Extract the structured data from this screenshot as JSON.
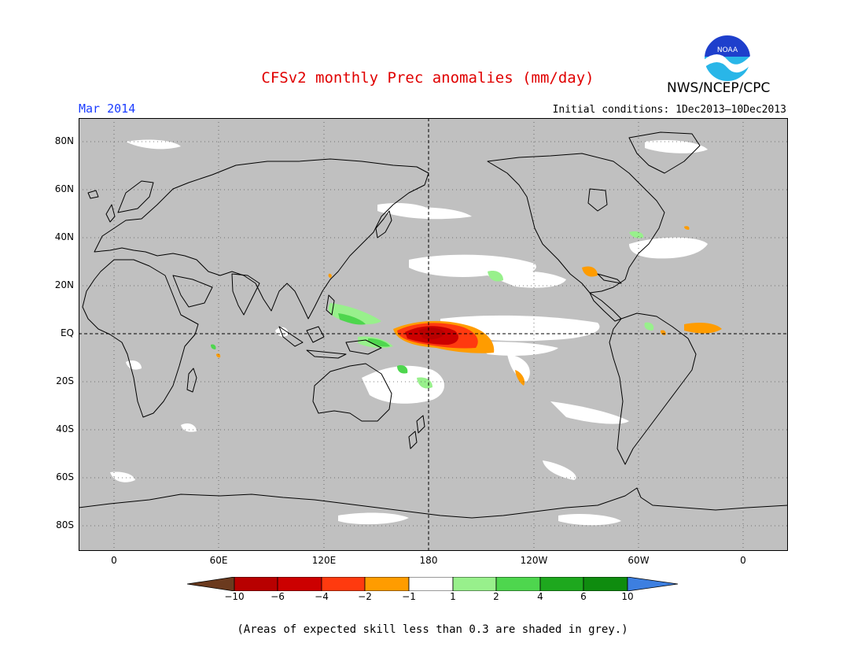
{
  "title": "CFSv2 monthly Prec anomalies (mm/day)",
  "valid_month": "Mar 2014",
  "initial_conditions": "Initial conditions: 1Dec2013–10Dec2013",
  "agency": "NWS/NCEP/CPC",
  "logo": {
    "text": "NOAA",
    "colors": {
      "top": "#1e3fcc",
      "bottom": "#29b6e8",
      "bird": "#ffffff"
    }
  },
  "map": {
    "background_color": "#c0c0c0",
    "coastline_color": "#000000",
    "grid": true,
    "lat_labels": [
      "80N",
      "60N",
      "40N",
      "20N",
      "EQ",
      "20S",
      "40S",
      "60S",
      "80S"
    ],
    "lon_labels": [
      "0",
      "60E",
      "120E",
      "180",
      "120W",
      "60W",
      "0"
    ],
    "center_lines": [
      "EQ",
      "180"
    ]
  },
  "colorbar": {
    "tick_labels": [
      "−10",
      "−6",
      "−4",
      "−2",
      "−1",
      "1",
      "2",
      "4",
      "6",
      "10"
    ],
    "colors": [
      "#6b3a1e",
      "#b80000",
      "#cc0000",
      "#ff3a0f",
      "#ff9c00",
      "#ffffff",
      "#98f08c",
      "#4ed64e",
      "#1ea81e",
      "#0f8c0f",
      "#3d7fe0"
    ]
  },
  "footnote": "(Areas of expected skill less than 0.3 are shaded in grey.)"
}
